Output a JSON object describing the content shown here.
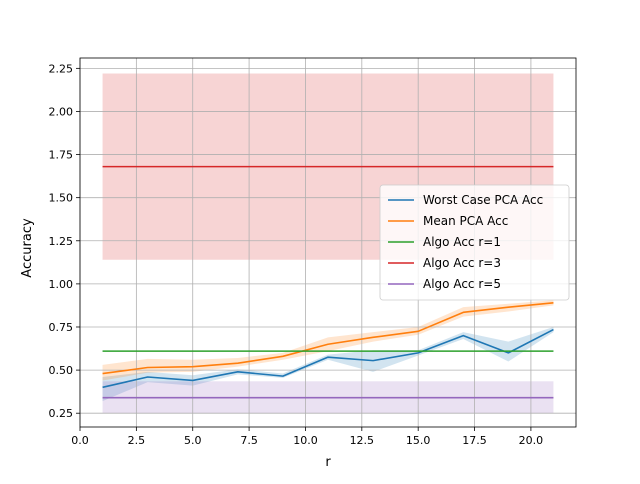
{
  "chart_data": {
    "type": "line",
    "title": "",
    "xlabel": "r",
    "ylabel": "Accuracy",
    "xlim": [
      0.0,
      22.0
    ],
    "ylim": [
      0.17,
      2.31
    ],
    "xticks": [
      0.0,
      2.5,
      5.0,
      7.5,
      10.0,
      12.5,
      15.0,
      17.5,
      20.0
    ],
    "xtick_labels": [
      "0.0",
      "2.5",
      "5.0",
      "7.5",
      "10.0",
      "12.5",
      "15.0",
      "17.5",
      "20.0"
    ],
    "yticks": [
      0.25,
      0.5,
      0.75,
      1.0,
      1.25,
      1.5,
      1.75,
      2.0,
      2.25
    ],
    "ytick_labels": [
      "0.25",
      "0.50",
      "0.75",
      "1.00",
      "1.25",
      "1.50",
      "1.75",
      "2.00",
      "2.25"
    ],
    "grid": true,
    "legend_position": "center-right",
    "x": [
      1,
      3,
      5,
      7,
      9,
      11,
      13,
      15,
      17,
      19,
      21
    ],
    "series": [
      {
        "name": "Worst Case PCA Acc",
        "kind": "line",
        "color": "#1f77b4",
        "values": [
          0.4,
          0.46,
          0.44,
          0.49,
          0.465,
          0.575,
          0.555,
          0.6,
          0.7,
          0.6,
          0.735
        ],
        "band_lower": [
          0.32,
          0.43,
          0.41,
          0.475,
          0.455,
          0.56,
          0.49,
          0.585,
          0.68,
          0.55,
          0.72
        ],
        "band_upper": [
          0.46,
          0.49,
          0.47,
          0.505,
          0.48,
          0.59,
          0.615,
          0.615,
          0.72,
          0.665,
          0.75
        ]
      },
      {
        "name": "Mean PCA Acc",
        "kind": "line",
        "color": "#ff7f0e",
        "values": [
          0.48,
          0.515,
          0.52,
          0.54,
          0.58,
          0.65,
          0.69,
          0.725,
          0.835,
          0.865,
          0.89
        ],
        "band_lower": [
          0.44,
          0.485,
          0.49,
          0.52,
          0.56,
          0.61,
          0.665,
          0.705,
          0.81,
          0.84,
          0.875
        ],
        "band_upper": [
          0.53,
          0.565,
          0.56,
          0.57,
          0.6,
          0.69,
          0.72,
          0.75,
          0.865,
          0.885,
          0.905
        ]
      },
      {
        "name": "Algo Acc r=1",
        "kind": "hline",
        "color": "#2ca02c",
        "value": 0.61
      },
      {
        "name": "Algo Acc r=3",
        "kind": "hline",
        "color": "#d62728",
        "value": 1.68,
        "band_lower": 1.14,
        "band_upper": 2.22
      },
      {
        "name": "Algo Acc r=5",
        "kind": "hline",
        "color": "#9467bd",
        "value": 0.34,
        "band_lower": 0.25,
        "band_upper": 0.435
      }
    ]
  }
}
